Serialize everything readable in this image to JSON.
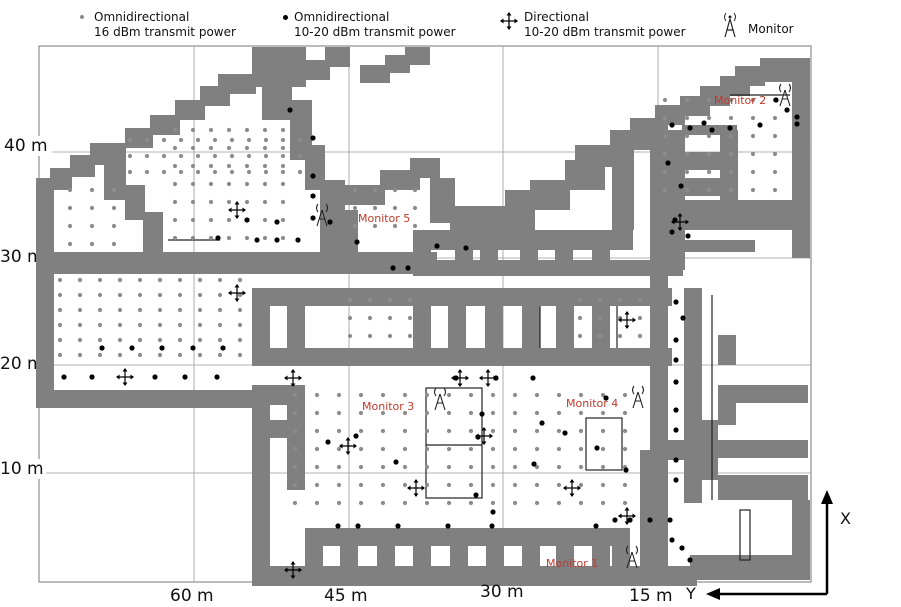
{
  "legend": [
    {
      "line1": "Omnidirectional",
      "line2": "16 dBm transmit power",
      "icon": "gray-dot-icon"
    },
    {
      "line1": "Omnidirectional",
      "line2": "10-20 dBm transmit power",
      "icon": "black-dot-icon"
    },
    {
      "line1": "Directional",
      "line2": "10-20 dBm transmit power",
      "icon": "cross-arrow-icon"
    },
    {
      "line1": "Monitor",
      "line2": "",
      "icon": "antenna-icon"
    }
  ],
  "y_axis_labels": [
    "40 m",
    "30 m",
    "20 m",
    "10 m"
  ],
  "x_axis_labels": [
    "60 m",
    "45 m",
    "30 m",
    "15 m"
  ],
  "monitors": [
    {
      "label": "Monitor 1"
    },
    {
      "label": "Monitor 2"
    },
    {
      "label": "Monitor 3"
    },
    {
      "label": "Monitor 4"
    },
    {
      "label": "Monitor 5"
    }
  ],
  "direction": {
    "x": "X",
    "y": "Y"
  },
  "colors": {
    "wall": "#808080",
    "grid": "#9a9a9a",
    "monitor_text": "#c0392b",
    "dot_gray": "#8c8c8c",
    "dot_black": "#000000"
  }
}
